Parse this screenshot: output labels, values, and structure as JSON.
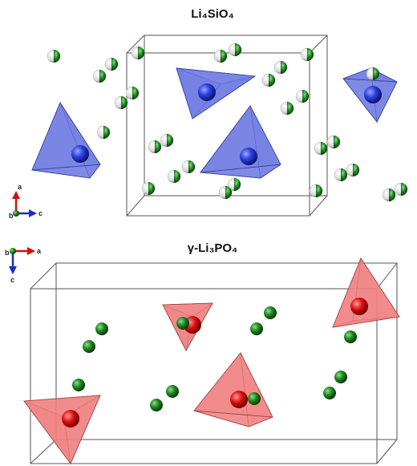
{
  "panels": [
    {
      "title": "Li₄SiO₄",
      "axes": {
        "up": "a",
        "origin": "b",
        "right": "c"
      }
    },
    {
      "title": "γ-Li₃PO₄",
      "axes": {
        "right": "a",
        "origin": "b",
        "down": "c"
      }
    }
  ]
}
